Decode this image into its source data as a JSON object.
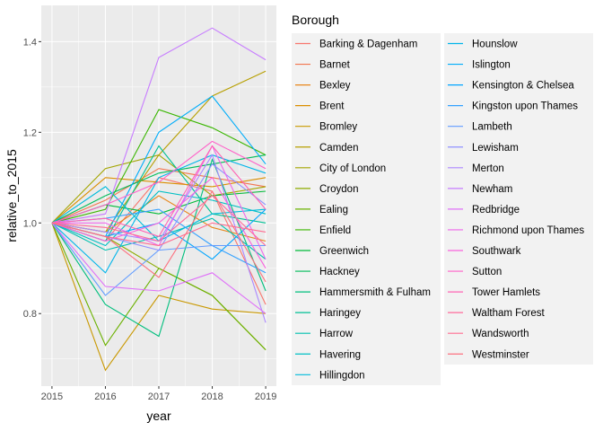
{
  "chart_data": {
    "type": "line",
    "xlabel": "year",
    "ylabel": "relative_to_2015",
    "x": [
      2015,
      2016,
      2017,
      2018,
      2019
    ],
    "x_ticks": [
      "2015",
      "2016",
      "2017",
      "2018",
      "2019"
    ],
    "y_ticks": [
      "0.8",
      "1.0",
      "1.2",
      "1.4"
    ],
    "xlim": [
      2015,
      2019
    ],
    "ylim": [
      0.64,
      1.48
    ],
    "grid": true,
    "legend_title": "Borough",
    "legend_position": "right",
    "series": [
      {
        "name": "Barking & Dagenham",
        "color": "#F8766D",
        "values": [
          1.0,
          0.96,
          1.1,
          1.07,
          0.82
        ]
      },
      {
        "name": "Barnet",
        "color": "#F2754E",
        "values": [
          1.0,
          1.05,
          1.12,
          1.1,
          1.08
        ]
      },
      {
        "name": "Bexley",
        "color": "#E7861B",
        "values": [
          1.0,
          0.98,
          1.06,
          0.99,
          0.96
        ]
      },
      {
        "name": "Brent",
        "color": "#DB8E00",
        "values": [
          1.0,
          1.1,
          1.09,
          1.08,
          1.1
        ]
      },
      {
        "name": "Bromley",
        "color": "#C99800",
        "values": [
          1.0,
          0.675,
          0.84,
          0.81,
          0.8
        ]
      },
      {
        "name": "Camden",
        "color": "#B79F00",
        "values": [
          1.0,
          0.98,
          1.15,
          1.28,
          1.335
        ]
      },
      {
        "name": "City of London",
        "color": "#A3A500",
        "values": [
          1.0,
          1.12,
          1.15,
          1.06,
          1.08
        ]
      },
      {
        "name": "Croydon",
        "color": "#8DAB00",
        "values": [
          1.0,
          0.97,
          0.9,
          0.84,
          0.72
        ]
      },
      {
        "name": "Ealing",
        "color": "#6BB100",
        "values": [
          1.0,
          0.73,
          0.9,
          0.84,
          0.72
        ]
      },
      {
        "name": "Enfield",
        "color": "#39B600",
        "values": [
          1.0,
          1.03,
          1.25,
          1.21,
          1.15
        ]
      },
      {
        "name": "Greenwich",
        "color": "#00BA38",
        "values": [
          1.0,
          1.04,
          1.02,
          1.06,
          1.07
        ]
      },
      {
        "name": "Hackney",
        "color": "#00BC59",
        "values": [
          1.0,
          1.06,
          1.11,
          1.13,
          1.15
        ]
      },
      {
        "name": "Hammersmith & Fulham",
        "color": "#00BF7D",
        "values": [
          1.0,
          0.82,
          0.75,
          1.14,
          0.85
        ]
      },
      {
        "name": "Haringey",
        "color": "#00C094",
        "values": [
          1.0,
          0.96,
          1.17,
          1.02,
          1.0
        ]
      },
      {
        "name": "Harrow",
        "color": "#00C0AF",
        "values": [
          1.0,
          0.94,
          0.97,
          1.01,
          0.92
        ]
      },
      {
        "name": "Havering",
        "color": "#00BFC4",
        "values": [
          1.0,
          0.95,
          1.07,
          1.05,
          1.02
        ]
      },
      {
        "name": "Hillingdon",
        "color": "#00BBDA",
        "values": [
          1.0,
          1.08,
          0.96,
          1.02,
          1.03
        ]
      },
      {
        "name": "Hounslow",
        "color": "#00B5EA",
        "values": [
          1.0,
          0.89,
          1.1,
          1.15,
          1.11
        ]
      },
      {
        "name": "Islington",
        "color": "#00ADFA",
        "values": [
          1.0,
          0.97,
          1.2,
          1.28,
          1.13
        ]
      },
      {
        "name": "Kensington & Chelsea",
        "color": "#00A5FF",
        "values": [
          1.0,
          0.97,
          1.0,
          0.92,
          1.03
        ]
      },
      {
        "name": "Kingston upon Thames",
        "color": "#35A2FF",
        "values": [
          1.0,
          1.01,
          1.03,
          0.95,
          0.89
        ]
      },
      {
        "name": "Lambeth",
        "color": "#619CFF",
        "values": [
          1.0,
          0.84,
          0.94,
          0.95,
          0.95
        ]
      },
      {
        "name": "Lewisham",
        "color": "#8F91FF",
        "values": [
          1.0,
          0.97,
          0.94,
          1.13,
          1.04
        ]
      },
      {
        "name": "Merton",
        "color": "#AC88FF",
        "values": [
          1.0,
          0.98,
          0.96,
          1.15,
          0.78
        ]
      },
      {
        "name": "Newham",
        "color": "#C77CFF",
        "values": [
          1.0,
          1.02,
          1.365,
          1.43,
          1.36
        ]
      },
      {
        "name": "Redbridge",
        "color": "#DF70F8",
        "values": [
          1.0,
          0.86,
          0.85,
          0.89,
          0.8
        ]
      },
      {
        "name": "Richmond upon Thames",
        "color": "#EF67EB",
        "values": [
          1.0,
          1.0,
          0.95,
          1.17,
          0.92
        ]
      },
      {
        "name": "Southwark",
        "color": "#F962DD",
        "values": [
          1.0,
          0.96,
          1.0,
          1.1,
          0.9
        ]
      },
      {
        "name": "Sutton",
        "color": "#FF61C9",
        "values": [
          1.0,
          1.04,
          1.09,
          1.18,
          1.12
        ]
      },
      {
        "name": "Tower Hamlets",
        "color": "#FF64B4",
        "values": [
          1.0,
          1.01,
          0.97,
          1.17,
          1.03
        ]
      },
      {
        "name": "Waltham Forest",
        "color": "#FF6A9A",
        "values": [
          1.0,
          0.99,
          0.96,
          1.06,
          0.95
        ]
      },
      {
        "name": "Wandsworth",
        "color": "#FF6C91",
        "values": [
          1.0,
          0.97,
          0.95,
          1.0,
          0.98
        ]
      },
      {
        "name": "Westminster",
        "color": "#FC717F",
        "values": [
          1.0,
          0.97,
          0.88,
          1.07,
          0.87
        ]
      }
    ]
  }
}
